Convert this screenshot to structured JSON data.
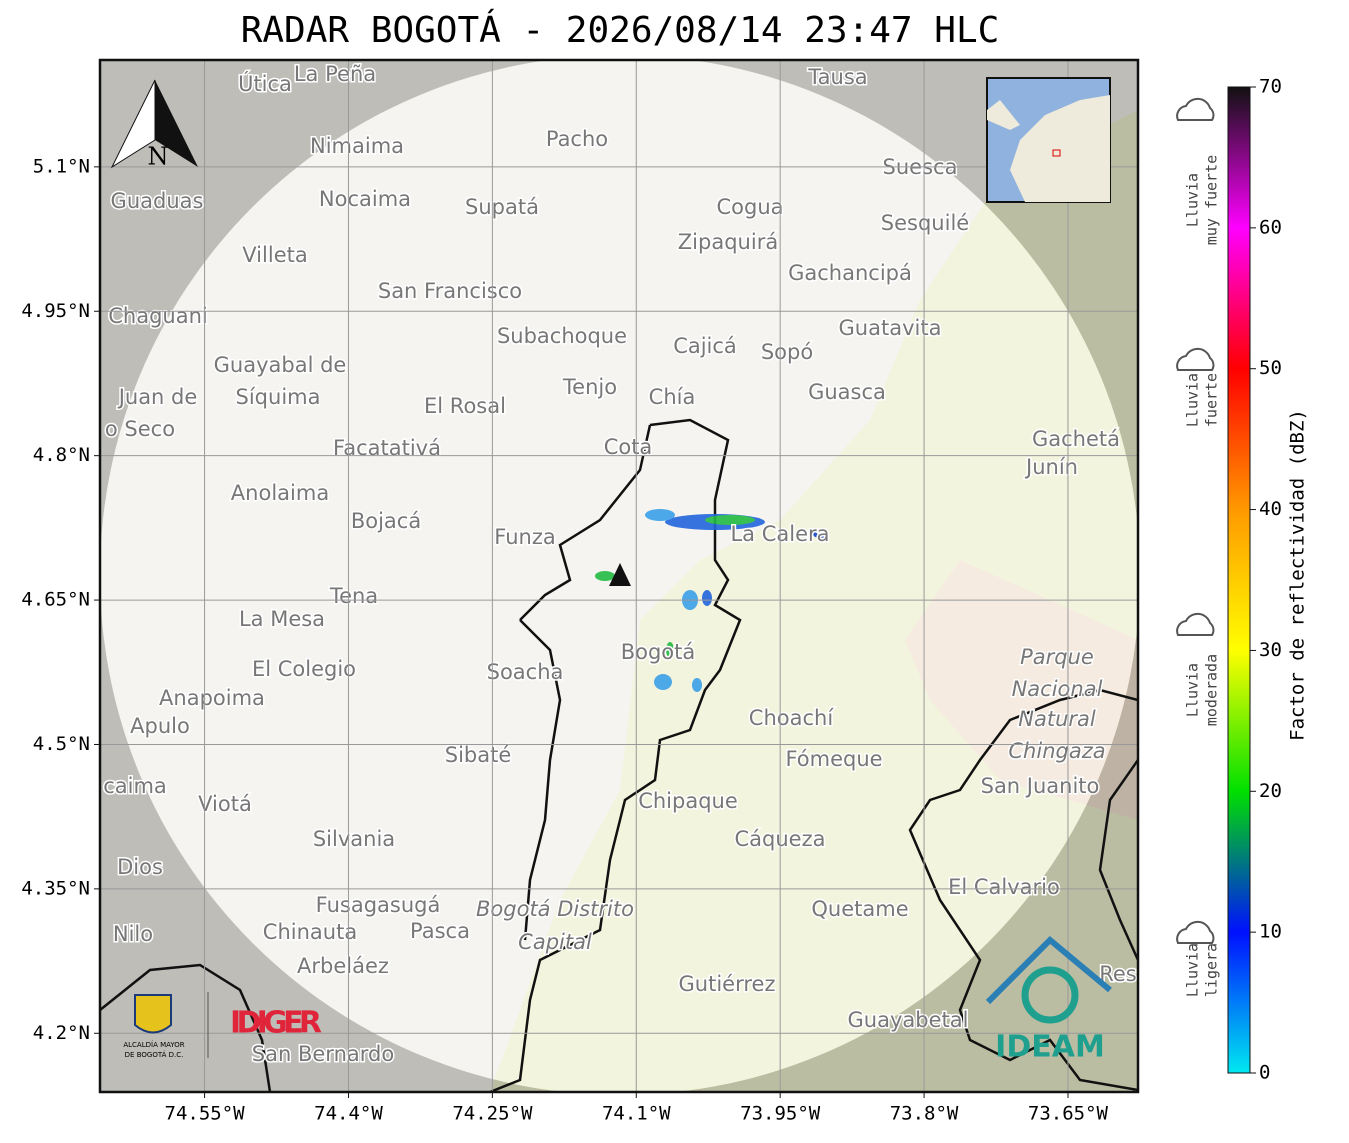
{
  "header": {
    "title": "RADAR BOGOTÁ - 2026/08/14 23:47 HLC"
  },
  "map": {
    "type": "map",
    "xlim": [
      -74.659,
      -73.577
    ],
    "ylim": [
      4.139,
      5.211
    ],
    "grid": true,
    "xticks": [
      {
        "value": -74.55,
        "label": "74.55°W"
      },
      {
        "value": -74.4,
        "label": "74.4°W"
      },
      {
        "value": -74.25,
        "label": "74.25°W"
      },
      {
        "value": -74.1,
        "label": "74.1°W"
      },
      {
        "value": -73.95,
        "label": "73.95°W"
      },
      {
        "value": -73.8,
        "label": "73.8°W"
      },
      {
        "value": -73.65,
        "label": "73.65°W"
      }
    ],
    "yticks": [
      {
        "value": 5.1,
        "label": "5.1°N"
      },
      {
        "value": 4.95,
        "label": "4.95°N"
      },
      {
        "value": 4.8,
        "label": "4.8°N"
      },
      {
        "value": 4.65,
        "label": "4.65°N"
      },
      {
        "value": 4.5,
        "label": "4.5°N"
      },
      {
        "value": 4.35,
        "label": "4.35°N"
      },
      {
        "value": 4.2,
        "label": "4.2°N"
      }
    ],
    "north": "N",
    "places": [
      "Útica",
      "La Peña",
      "Tausa",
      "Pacho",
      "Nimaima",
      "Suesca",
      "Guaduas",
      "Nocaima",
      "Supatá",
      "Cogua",
      "Sesquilé",
      "Zipaquirá",
      "Villeta",
      "Gachancipá",
      "San Francisco",
      "Chaguani",
      "Guatavita",
      "Subachoque",
      "Cajicá",
      "Sopó",
      "Guayabal de",
      "Síquima",
      "Tenjo",
      "Chía",
      "Guasca",
      "Juan de",
      "El Rosal",
      "o Seco",
      "Gachetá",
      "Junín",
      "Facatativá",
      "Cota",
      "Anolaima",
      "Bojacá",
      "Funza",
      "La Calera",
      "Tena",
      "La Mesa",
      "Bogotá",
      "El Colegio",
      "Soacha",
      "Parque",
      "Nacional",
      "Natural",
      "Chingaza",
      "Anapoima",
      "Apulo",
      "Choachí",
      "Fómeque",
      "Sibaté",
      "San Juanito",
      "caima",
      "Viotá",
      "Chipaque",
      "Cáqueza",
      "Silvania",
      "Dios",
      "El Calvario",
      "Fusagasugá",
      "Bogotá Distrito",
      "Quetame",
      "Nilo",
      "Chinauta",
      "Pasca",
      "Capital",
      "Arbeláez",
      "Gutiérrez",
      "Guayabetal",
      "San Bernardo",
      "Res"
    ]
  },
  "colorbar": {
    "label": "Factor de reflectividad (dBZ)",
    "lim": [
      0,
      70
    ],
    "ticks": [
      0,
      10,
      20,
      30,
      40,
      50,
      60,
      70
    ],
    "colors": [
      "#00e8f0",
      "#0010ff",
      "#00e000",
      "#ffff00",
      "#ff9900",
      "#ff0000",
      "#ff00ff",
      "#111111"
    ]
  },
  "legend": [
    {
      "line1": "Lluvia",
      "line2": "muy fuerte"
    },
    {
      "line1": "Lluvia",
      "line2": "fuerte"
    },
    {
      "line1": "Lluvia",
      "line2": "moderada"
    },
    {
      "line1": "Lluvia",
      "line2": "ligera"
    }
  ],
  "logos": {
    "idiger": "IDIGER",
    "ideam": "IDEAM",
    "alcaldia1": "ALCALDÍA MAYOR",
    "alcaldia2": "DE BOGOTÁ D.C."
  }
}
